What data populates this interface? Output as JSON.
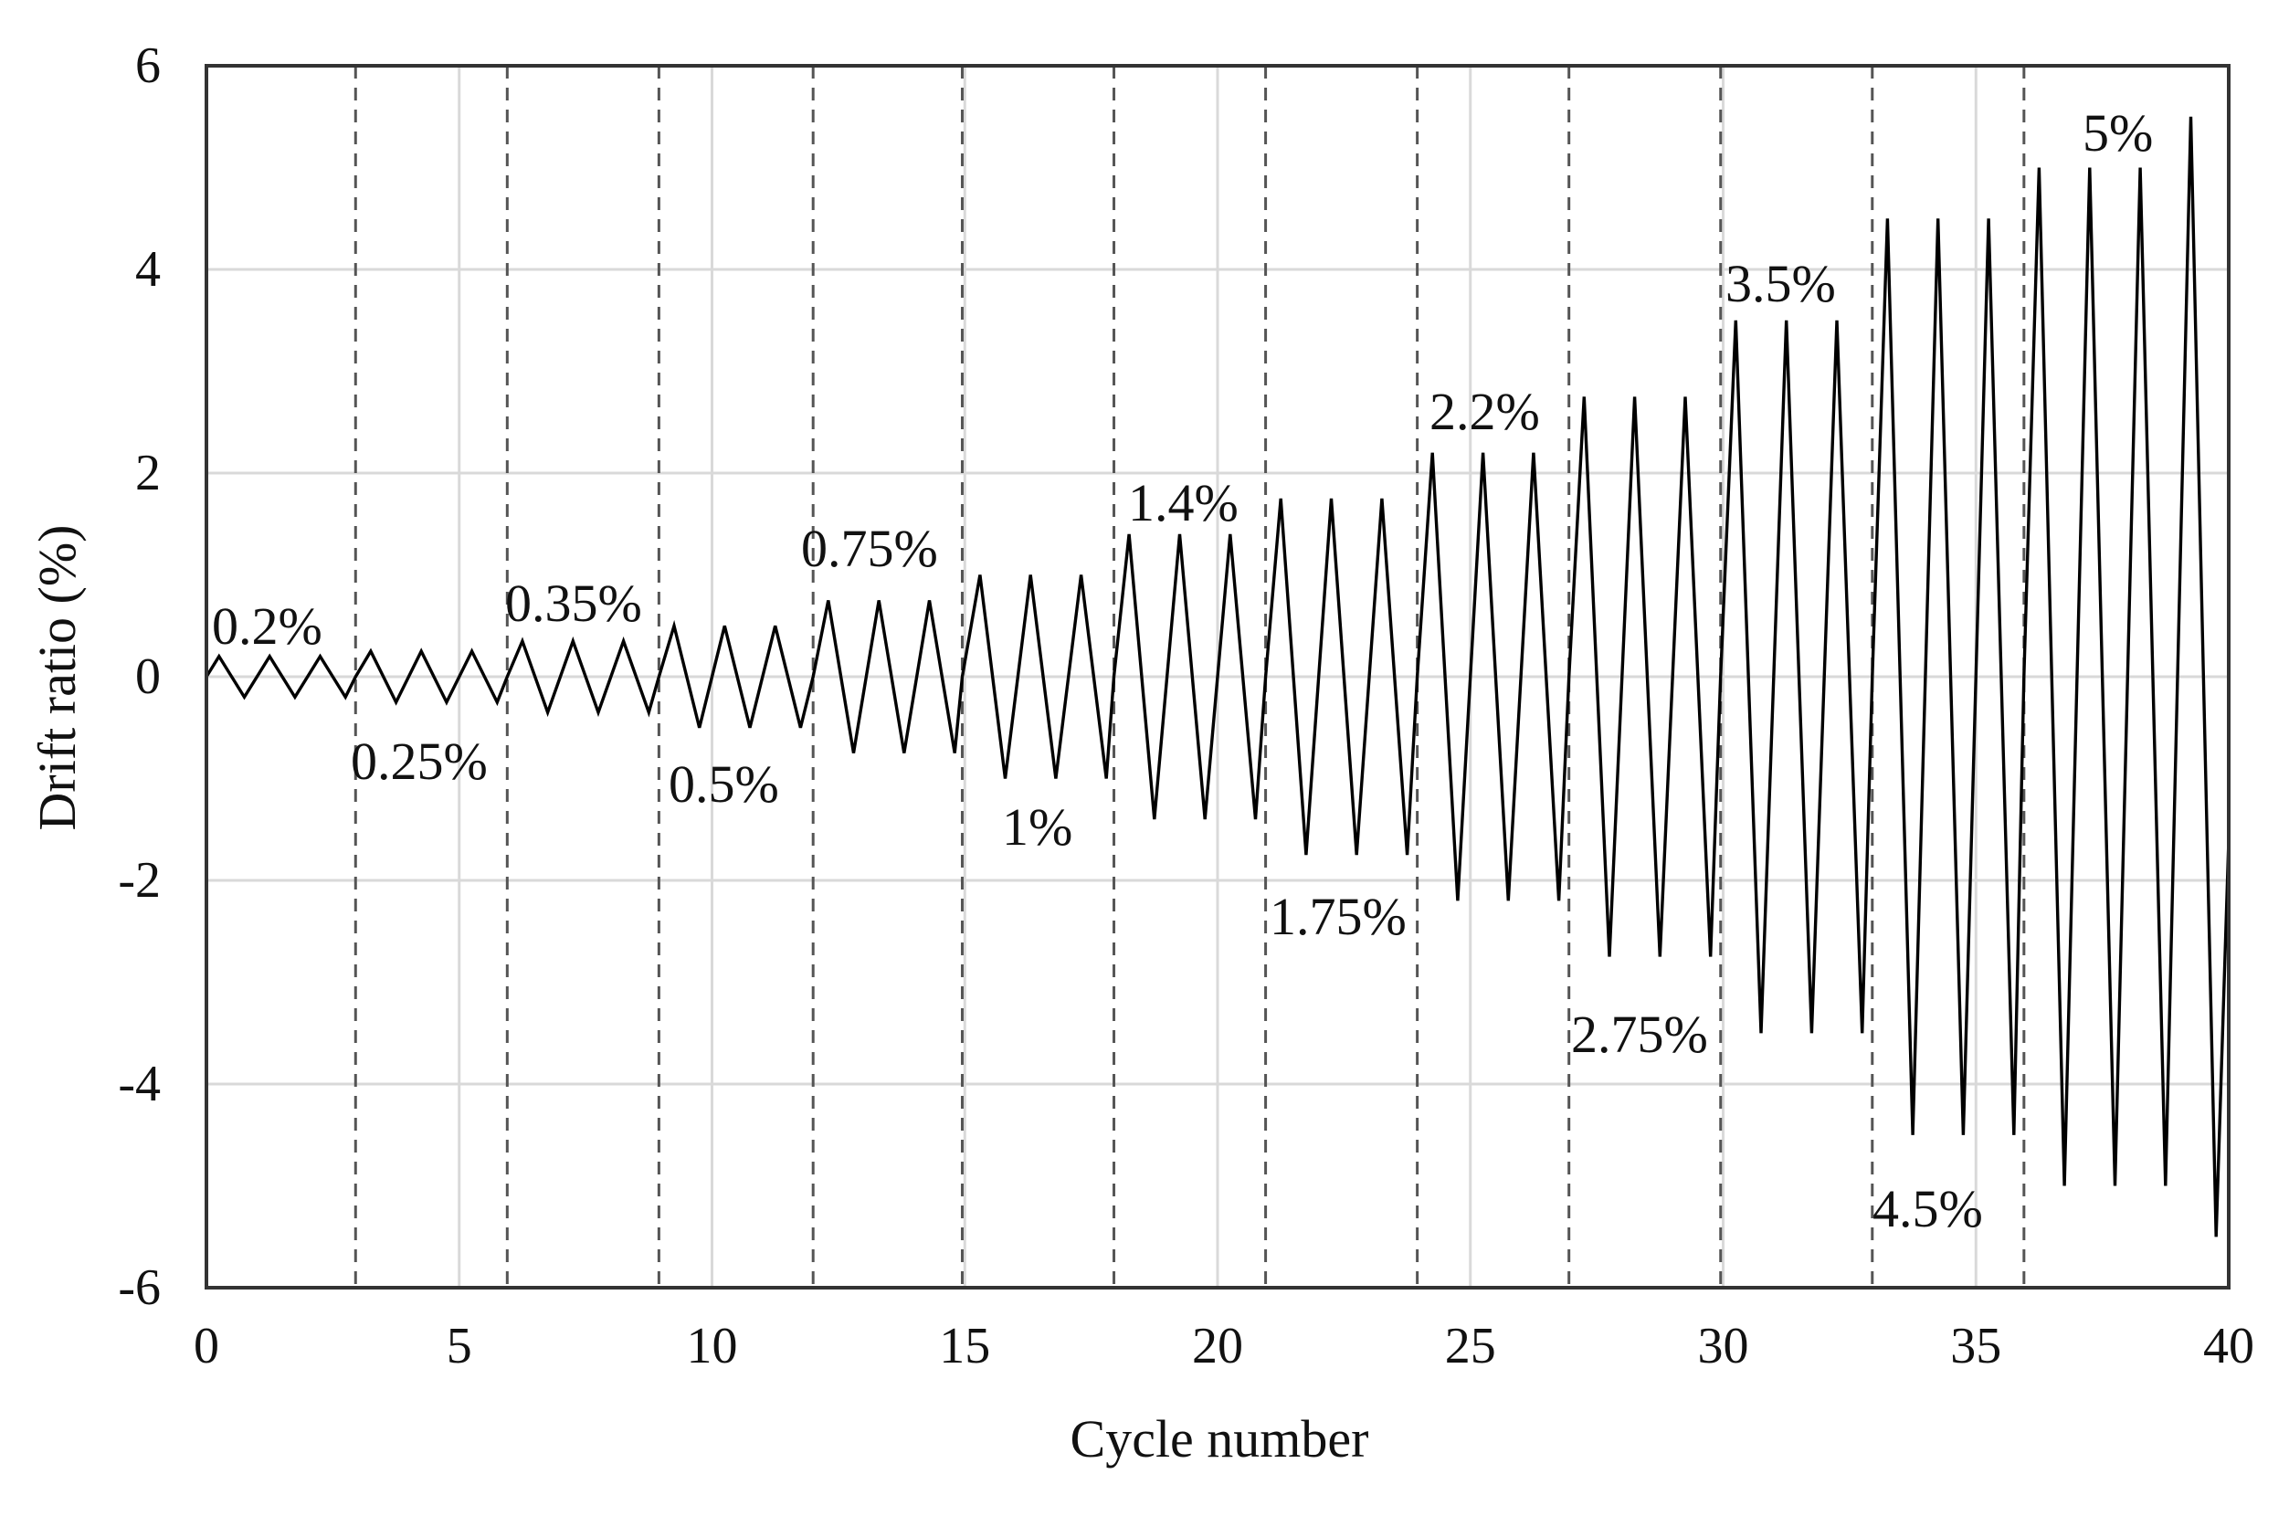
{
  "chart_data": {
    "type": "line",
    "xlabel": "Cycle number",
    "ylabel": "Drift ratio (%)",
    "xlim": [
      0,
      40
    ],
    "ylim": [
      -6,
      6
    ],
    "x_ticks": [
      "0",
      "5",
      "10",
      "15",
      "20",
      "25",
      "30",
      "35",
      "40"
    ],
    "y_ticks": [
      "6",
      "4",
      "2",
      "0",
      "-2",
      "-4",
      "-6"
    ],
    "grid": true,
    "legend": "none",
    "stages": [
      {
        "label": "0.2%",
        "amplitude": 0.2,
        "cycles": 3
      },
      {
        "label": "0.25%",
        "amplitude": 0.25,
        "cycles": 3
      },
      {
        "label": "0.35%",
        "amplitude": 0.35,
        "cycles": 3
      },
      {
        "label": "0.5%",
        "amplitude": 0.5,
        "cycles": 3
      },
      {
        "label": "0.75%",
        "amplitude": 0.75,
        "cycles": 3
      },
      {
        "label": "1%",
        "amplitude": 1.0,
        "cycles": 3
      },
      {
        "label": "1.4%",
        "amplitude": 1.4,
        "cycles": 3
      },
      {
        "label": "1.75%",
        "amplitude": 1.75,
        "cycles": 3
      },
      {
        "label": "2.2%",
        "amplitude": 2.2,
        "cycles": 3
      },
      {
        "label": "2.75%",
        "amplitude": 2.75,
        "cycles": 3
      },
      {
        "label": "3.5%",
        "amplitude": 3.5,
        "cycles": 3
      },
      {
        "label": "4.5%",
        "amplitude": 4.5,
        "cycles": 3
      },
      {
        "label": "5%",
        "amplitude": 5.0,
        "cycles": 3
      }
    ],
    "final_peak": 5.5,
    "stage_boundaries": [
      2.95,
      5.95,
      8.95,
      12.0,
      14.95,
      17.95,
      20.95,
      23.95,
      26.95,
      29.95,
      32.95,
      35.95
    ],
    "series": [
      {
        "points": [
          [
            0,
            0
          ],
          [
            0.25,
            0.2
          ],
          [
            0.75,
            -0.2
          ],
          [
            1.25,
            0.2
          ],
          [
            1.75,
            -0.2
          ],
          [
            2.25,
            0.2
          ],
          [
            2.75,
            -0.2
          ],
          [
            2.95,
            0
          ],
          [
            3.25,
            0.25
          ],
          [
            3.75,
            -0.25
          ],
          [
            4.25,
            0.25
          ],
          [
            4.75,
            -0.25
          ],
          [
            5.25,
            0.25
          ],
          [
            5.75,
            -0.25
          ],
          [
            5.95,
            0
          ],
          [
            6.25,
            0.35
          ],
          [
            6.75,
            -0.35
          ],
          [
            7.25,
            0.35
          ],
          [
            7.75,
            -0.35
          ],
          [
            8.25,
            0.35
          ],
          [
            8.75,
            -0.35
          ],
          [
            8.95,
            0
          ],
          [
            9.25,
            0.5
          ],
          [
            9.75,
            -0.5
          ],
          [
            10.25,
            0.5
          ],
          [
            10.75,
            -0.5
          ],
          [
            11.25,
            0.5
          ],
          [
            11.75,
            -0.5
          ],
          [
            12.0,
            0
          ],
          [
            12.3,
            0.75
          ],
          [
            12.8,
            -0.75
          ],
          [
            13.3,
            0.75
          ],
          [
            13.8,
            -0.75
          ],
          [
            14.3,
            0.75
          ],
          [
            14.8,
            -0.75
          ],
          [
            14.95,
            0
          ],
          [
            15.3,
            1.0
          ],
          [
            15.8,
            -1.0
          ],
          [
            16.3,
            1.0
          ],
          [
            16.8,
            -1.0
          ],
          [
            17.3,
            1.0
          ],
          [
            17.8,
            -1.0
          ],
          [
            17.95,
            0
          ],
          [
            18.25,
            1.4
          ],
          [
            18.75,
            -1.4
          ],
          [
            19.25,
            1.4
          ],
          [
            19.75,
            -1.4
          ],
          [
            20.25,
            1.4
          ],
          [
            20.75,
            -1.4
          ],
          [
            20.95,
            0
          ],
          [
            21.25,
            1.75
          ],
          [
            21.75,
            -1.75
          ],
          [
            22.25,
            1.75
          ],
          [
            22.75,
            -1.75
          ],
          [
            23.25,
            1.75
          ],
          [
            23.75,
            -1.75
          ],
          [
            23.95,
            0
          ],
          [
            24.25,
            2.2
          ],
          [
            24.75,
            -2.2
          ],
          [
            25.25,
            2.2
          ],
          [
            25.75,
            -2.2
          ],
          [
            26.25,
            2.2
          ],
          [
            26.75,
            -2.2
          ],
          [
            26.95,
            0
          ],
          [
            27.25,
            2.75
          ],
          [
            27.75,
            -2.75
          ],
          [
            28.25,
            2.75
          ],
          [
            28.75,
            -2.75
          ],
          [
            29.25,
            2.75
          ],
          [
            29.75,
            -2.75
          ],
          [
            29.95,
            0
          ],
          [
            30.25,
            3.5
          ],
          [
            30.75,
            -3.5
          ],
          [
            31.25,
            3.5
          ],
          [
            31.75,
            -3.5
          ],
          [
            32.25,
            3.5
          ],
          [
            32.75,
            -3.5
          ],
          [
            32.95,
            0
          ],
          [
            33.25,
            4.5
          ],
          [
            33.75,
            -4.5
          ],
          [
            34.25,
            4.5
          ],
          [
            34.75,
            -4.5
          ],
          [
            35.25,
            4.5
          ],
          [
            35.75,
            -4.5
          ],
          [
            35.95,
            0
          ],
          [
            36.25,
            5.0
          ],
          [
            36.75,
            -5.0
          ],
          [
            37.25,
            5.0
          ],
          [
            37.75,
            -5.0
          ],
          [
            38.25,
            5.0
          ],
          [
            38.75,
            -5.0
          ],
          [
            39.25,
            5.5
          ],
          [
            39.75,
            -5.5
          ],
          [
            40,
            -1.6
          ]
        ]
      }
    ]
  }
}
